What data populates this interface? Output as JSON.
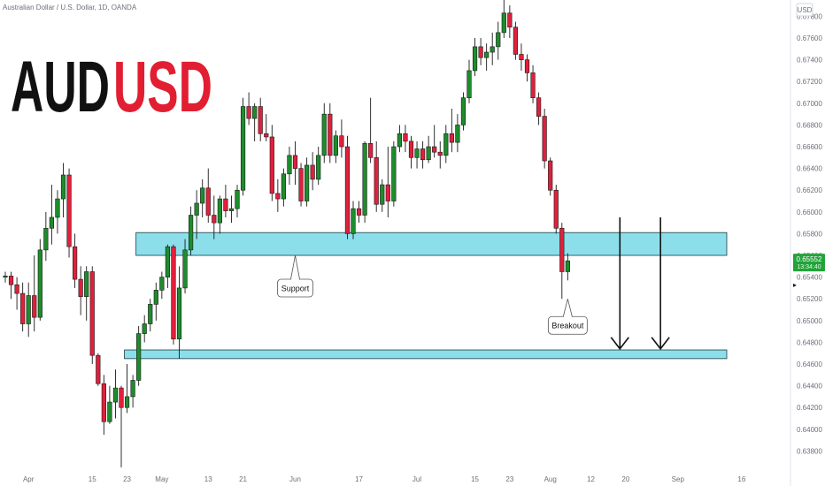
{
  "header": {
    "symbol_info": "Australian Dollar / U.S. Dollar, 1D, OANDA",
    "title_part1": "AUD",
    "title_part2": "USD",
    "currency": "USD",
    "price_label": "0.65552",
    "countdown_label": "13:34:40"
  },
  "colors": {
    "up": "#1e8c2c",
    "down": "#e0203c",
    "zone_fill": "#7fdbe8",
    "title_black": "#111111",
    "title_red": "#e21e32",
    "price_badge": "#22a33a"
  },
  "annotations": {
    "support_label": "Support",
    "breakout_label": "Breakout"
  },
  "chart_data": {
    "type": "candlestick",
    "ylim": [
      0.636,
      0.6795
    ],
    "y_ticks": [
      0.638,
      0.64,
      0.642,
      0.644,
      0.646,
      0.648,
      0.65,
      0.652,
      0.654,
      0.656,
      0.658,
      0.66,
      0.662,
      0.664,
      0.666,
      0.668,
      0.67,
      0.672,
      0.674,
      0.676,
      0.678
    ],
    "y_tick_labels": [
      "0.63800",
      "0.64000",
      "0.64200",
      "0.64400",
      "0.64600",
      "0.64800",
      "0.65000",
      "0.65200",
      "0.65400",
      "0.65600",
      "0.65800",
      "0.66000",
      "0.66200",
      "0.66400",
      "0.66600",
      "0.66800",
      "0.67000",
      "0.67200",
      "0.67400",
      "0.67600",
      "0.67800"
    ],
    "x_ticks": [
      {
        "label": "Apr",
        "index": 4
      },
      {
        "label": "15",
        "index": 15
      },
      {
        "label": "23",
        "index": 21
      },
      {
        "label": "May",
        "index": 27
      },
      {
        "label": "13",
        "index": 35
      },
      {
        "label": "21",
        "index": 41
      },
      {
        "label": "Jun",
        "index": 50
      },
      {
        "label": "17",
        "index": 61
      },
      {
        "label": "Jul",
        "index": 71
      },
      {
        "label": "15",
        "index": 81
      },
      {
        "label": "23",
        "index": 87
      },
      {
        "label": "Aug",
        "index": 94
      },
      {
        "label": "12",
        "index": 101
      },
      {
        "label": "20",
        "index": 107
      },
      {
        "label": "Sep",
        "index": 116
      },
      {
        "label": "16",
        "index": 127
      }
    ],
    "candles": [
      {
        "o": 0.654,
        "h": 0.6545,
        "l": 0.6535,
        "c": 0.6541
      },
      {
        "o": 0.6541,
        "h": 0.6545,
        "l": 0.652,
        "c": 0.6533
      },
      {
        "o": 0.6533,
        "h": 0.654,
        "l": 0.651,
        "c": 0.6525
      },
      {
        "o": 0.6525,
        "h": 0.6535,
        "l": 0.649,
        "c": 0.6497
      },
      {
        "o": 0.6497,
        "h": 0.6535,
        "l": 0.6485,
        "c": 0.6523
      },
      {
        "o": 0.6523,
        "h": 0.656,
        "l": 0.649,
        "c": 0.6503
      },
      {
        "o": 0.6503,
        "h": 0.6575,
        "l": 0.65,
        "c": 0.6565
      },
      {
        "o": 0.6565,
        "h": 0.66,
        "l": 0.6555,
        "c": 0.6585
      },
      {
        "o": 0.6585,
        "h": 0.6625,
        "l": 0.657,
        "c": 0.6595
      },
      {
        "o": 0.6595,
        "h": 0.662,
        "l": 0.658,
        "c": 0.6612
      },
      {
        "o": 0.6612,
        "h": 0.6645,
        "l": 0.6595,
        "c": 0.6634
      },
      {
        "o": 0.6634,
        "h": 0.664,
        "l": 0.6558,
        "c": 0.6568
      },
      {
        "o": 0.6568,
        "h": 0.658,
        "l": 0.653,
        "c": 0.6538
      },
      {
        "o": 0.6538,
        "h": 0.655,
        "l": 0.6505,
        "c": 0.6522
      },
      {
        "o": 0.6522,
        "h": 0.655,
        "l": 0.65,
        "c": 0.6545
      },
      {
        "o": 0.6545,
        "h": 0.655,
        "l": 0.646,
        "c": 0.6468
      },
      {
        "o": 0.6468,
        "h": 0.647,
        "l": 0.644,
        "c": 0.6442
      },
      {
        "o": 0.6442,
        "h": 0.645,
        "l": 0.6395,
        "c": 0.6407
      },
      {
        "o": 0.6407,
        "h": 0.644,
        "l": 0.6405,
        "c": 0.6425
      },
      {
        "o": 0.6425,
        "h": 0.6455,
        "l": 0.641,
        "c": 0.6438
      },
      {
        "o": 0.6438,
        "h": 0.644,
        "l": 0.6365,
        "c": 0.642
      },
      {
        "o": 0.642,
        "h": 0.646,
        "l": 0.6415,
        "c": 0.643
      },
      {
        "o": 0.643,
        "h": 0.645,
        "l": 0.642,
        "c": 0.6445
      },
      {
        "o": 0.6445,
        "h": 0.6495,
        "l": 0.644,
        "c": 0.6488
      },
      {
        "o": 0.6488,
        "h": 0.6505,
        "l": 0.648,
        "c": 0.6497
      },
      {
        "o": 0.6497,
        "h": 0.652,
        "l": 0.649,
        "c": 0.6515
      },
      {
        "o": 0.6515,
        "h": 0.6535,
        "l": 0.65,
        "c": 0.6528
      },
      {
        "o": 0.6528,
        "h": 0.6545,
        "l": 0.652,
        "c": 0.654
      },
      {
        "o": 0.654,
        "h": 0.657,
        "l": 0.653,
        "c": 0.6568
      },
      {
        "o": 0.6568,
        "h": 0.657,
        "l": 0.6478,
        "c": 0.6483
      },
      {
        "o": 0.6483,
        "h": 0.655,
        "l": 0.6465,
        "c": 0.653
      },
      {
        "o": 0.653,
        "h": 0.6575,
        "l": 0.6525,
        "c": 0.6565
      },
      {
        "o": 0.6565,
        "h": 0.6605,
        "l": 0.656,
        "c": 0.6597
      },
      {
        "o": 0.6597,
        "h": 0.662,
        "l": 0.6575,
        "c": 0.6608
      },
      {
        "o": 0.6608,
        "h": 0.663,
        "l": 0.6595,
        "c": 0.6622
      },
      {
        "o": 0.6622,
        "h": 0.664,
        "l": 0.659,
        "c": 0.6597
      },
      {
        "o": 0.6597,
        "h": 0.6615,
        "l": 0.6575,
        "c": 0.659
      },
      {
        "o": 0.659,
        "h": 0.6615,
        "l": 0.658,
        "c": 0.6612
      },
      {
        "o": 0.6612,
        "h": 0.6625,
        "l": 0.6595,
        "c": 0.6601
      },
      {
        "o": 0.6601,
        "h": 0.6615,
        "l": 0.659,
        "c": 0.6603
      },
      {
        "o": 0.6603,
        "h": 0.6625,
        "l": 0.6595,
        "c": 0.662
      },
      {
        "o": 0.662,
        "h": 0.6705,
        "l": 0.6615,
        "c": 0.6697
      },
      {
        "o": 0.6697,
        "h": 0.671,
        "l": 0.668,
        "c": 0.6686
      },
      {
        "o": 0.6686,
        "h": 0.67,
        "l": 0.6665,
        "c": 0.6697
      },
      {
        "o": 0.6697,
        "h": 0.6705,
        "l": 0.6665,
        "c": 0.6672
      },
      {
        "o": 0.6672,
        "h": 0.669,
        "l": 0.6665,
        "c": 0.6669
      },
      {
        "o": 0.6669,
        "h": 0.668,
        "l": 0.661,
        "c": 0.6617
      },
      {
        "o": 0.6617,
        "h": 0.663,
        "l": 0.66,
        "c": 0.6612
      },
      {
        "o": 0.6612,
        "h": 0.664,
        "l": 0.6605,
        "c": 0.6635
      },
      {
        "o": 0.6635,
        "h": 0.666,
        "l": 0.6625,
        "c": 0.6652
      },
      {
        "o": 0.6652,
        "h": 0.6665,
        "l": 0.6625,
        "c": 0.664
      },
      {
        "o": 0.664,
        "h": 0.6645,
        "l": 0.6605,
        "c": 0.661
      },
      {
        "o": 0.661,
        "h": 0.665,
        "l": 0.6605,
        "c": 0.6643
      },
      {
        "o": 0.6643,
        "h": 0.6655,
        "l": 0.662,
        "c": 0.663
      },
      {
        "o": 0.663,
        "h": 0.666,
        "l": 0.6625,
        "c": 0.6652
      },
      {
        "o": 0.6652,
        "h": 0.67,
        "l": 0.6645,
        "c": 0.669
      },
      {
        "o": 0.669,
        "h": 0.67,
        "l": 0.6645,
        "c": 0.6652
      },
      {
        "o": 0.6652,
        "h": 0.6675,
        "l": 0.6645,
        "c": 0.667
      },
      {
        "o": 0.667,
        "h": 0.6685,
        "l": 0.665,
        "c": 0.666
      },
      {
        "o": 0.666,
        "h": 0.667,
        "l": 0.6575,
        "c": 0.658
      },
      {
        "o": 0.658,
        "h": 0.661,
        "l": 0.6575,
        "c": 0.6603
      },
      {
        "o": 0.6603,
        "h": 0.661,
        "l": 0.659,
        "c": 0.6597
      },
      {
        "o": 0.6597,
        "h": 0.6665,
        "l": 0.659,
        "c": 0.6663
      },
      {
        "o": 0.6663,
        "h": 0.6705,
        "l": 0.6645,
        "c": 0.665
      },
      {
        "o": 0.665,
        "h": 0.6665,
        "l": 0.66,
        "c": 0.6607
      },
      {
        "o": 0.6607,
        "h": 0.663,
        "l": 0.66,
        "c": 0.6625
      },
      {
        "o": 0.6625,
        "h": 0.666,
        "l": 0.6595,
        "c": 0.661
      },
      {
        "o": 0.661,
        "h": 0.6665,
        "l": 0.6605,
        "c": 0.666
      },
      {
        "o": 0.666,
        "h": 0.668,
        "l": 0.6655,
        "c": 0.6672
      },
      {
        "o": 0.6672,
        "h": 0.668,
        "l": 0.6655,
        "c": 0.6665
      },
      {
        "o": 0.6665,
        "h": 0.667,
        "l": 0.664,
        "c": 0.665
      },
      {
        "o": 0.665,
        "h": 0.6665,
        "l": 0.664,
        "c": 0.6658
      },
      {
        "o": 0.6658,
        "h": 0.6665,
        "l": 0.664,
        "c": 0.6648
      },
      {
        "o": 0.6648,
        "h": 0.667,
        "l": 0.6645,
        "c": 0.666
      },
      {
        "o": 0.666,
        "h": 0.668,
        "l": 0.665,
        "c": 0.6655
      },
      {
        "o": 0.6655,
        "h": 0.6665,
        "l": 0.664,
        "c": 0.6652
      },
      {
        "o": 0.6652,
        "h": 0.668,
        "l": 0.6645,
        "c": 0.6672
      },
      {
        "o": 0.6672,
        "h": 0.6695,
        "l": 0.6655,
        "c": 0.6664
      },
      {
        "o": 0.6664,
        "h": 0.669,
        "l": 0.6655,
        "c": 0.668
      },
      {
        "o": 0.668,
        "h": 0.671,
        "l": 0.6675,
        "c": 0.6705
      },
      {
        "o": 0.6705,
        "h": 0.674,
        "l": 0.67,
        "c": 0.673
      },
      {
        "o": 0.673,
        "h": 0.676,
        "l": 0.6725,
        "c": 0.6752
      },
      {
        "o": 0.6752,
        "h": 0.676,
        "l": 0.6735,
        "c": 0.6742
      },
      {
        "o": 0.6742,
        "h": 0.6755,
        "l": 0.673,
        "c": 0.6747
      },
      {
        "o": 0.6747,
        "h": 0.6765,
        "l": 0.6735,
        "c": 0.6752
      },
      {
        "o": 0.6752,
        "h": 0.6775,
        "l": 0.674,
        "c": 0.6765
      },
      {
        "o": 0.6765,
        "h": 0.6795,
        "l": 0.676,
        "c": 0.6783
      },
      {
        "o": 0.6783,
        "h": 0.679,
        "l": 0.676,
        "c": 0.677
      },
      {
        "o": 0.677,
        "h": 0.6775,
        "l": 0.674,
        "c": 0.6745
      },
      {
        "o": 0.6745,
        "h": 0.6755,
        "l": 0.673,
        "c": 0.674
      },
      {
        "o": 0.674,
        "h": 0.6745,
        "l": 0.672,
        "c": 0.6728
      },
      {
        "o": 0.6728,
        "h": 0.6735,
        "l": 0.67,
        "c": 0.6705
      },
      {
        "o": 0.6705,
        "h": 0.671,
        "l": 0.668,
        "c": 0.6688
      },
      {
        "o": 0.6688,
        "h": 0.6695,
        "l": 0.664,
        "c": 0.6647
      },
      {
        "o": 0.6647,
        "h": 0.665,
        "l": 0.6615,
        "c": 0.662
      },
      {
        "o": 0.662,
        "h": 0.6625,
        "l": 0.658,
        "c": 0.6585
      },
      {
        "o": 0.6585,
        "h": 0.659,
        "l": 0.652,
        "c": 0.6545
      },
      {
        "o": 0.6545,
        "h": 0.6562,
        "l": 0.6537,
        "c": 0.6555
      }
    ],
    "zones": [
      {
        "name": "support-zone",
        "y_low": 0.656,
        "y_high": 0.6581,
        "start_index": 23
      },
      {
        "name": "target-zone",
        "y_low": 0.6465,
        "y_high": 0.6473,
        "start_index": 21
      }
    ],
    "support_callout_anchor": {
      "index": 50,
      "y": 0.656
    },
    "breakout_callout_anchor": {
      "index": 97,
      "y": 0.652
    },
    "arrows": [
      {
        "index": 106,
        "y_from": 0.6595,
        "y_to": 0.6474
      },
      {
        "index": 113,
        "y_from": 0.6595,
        "y_to": 0.6474
      }
    ]
  }
}
